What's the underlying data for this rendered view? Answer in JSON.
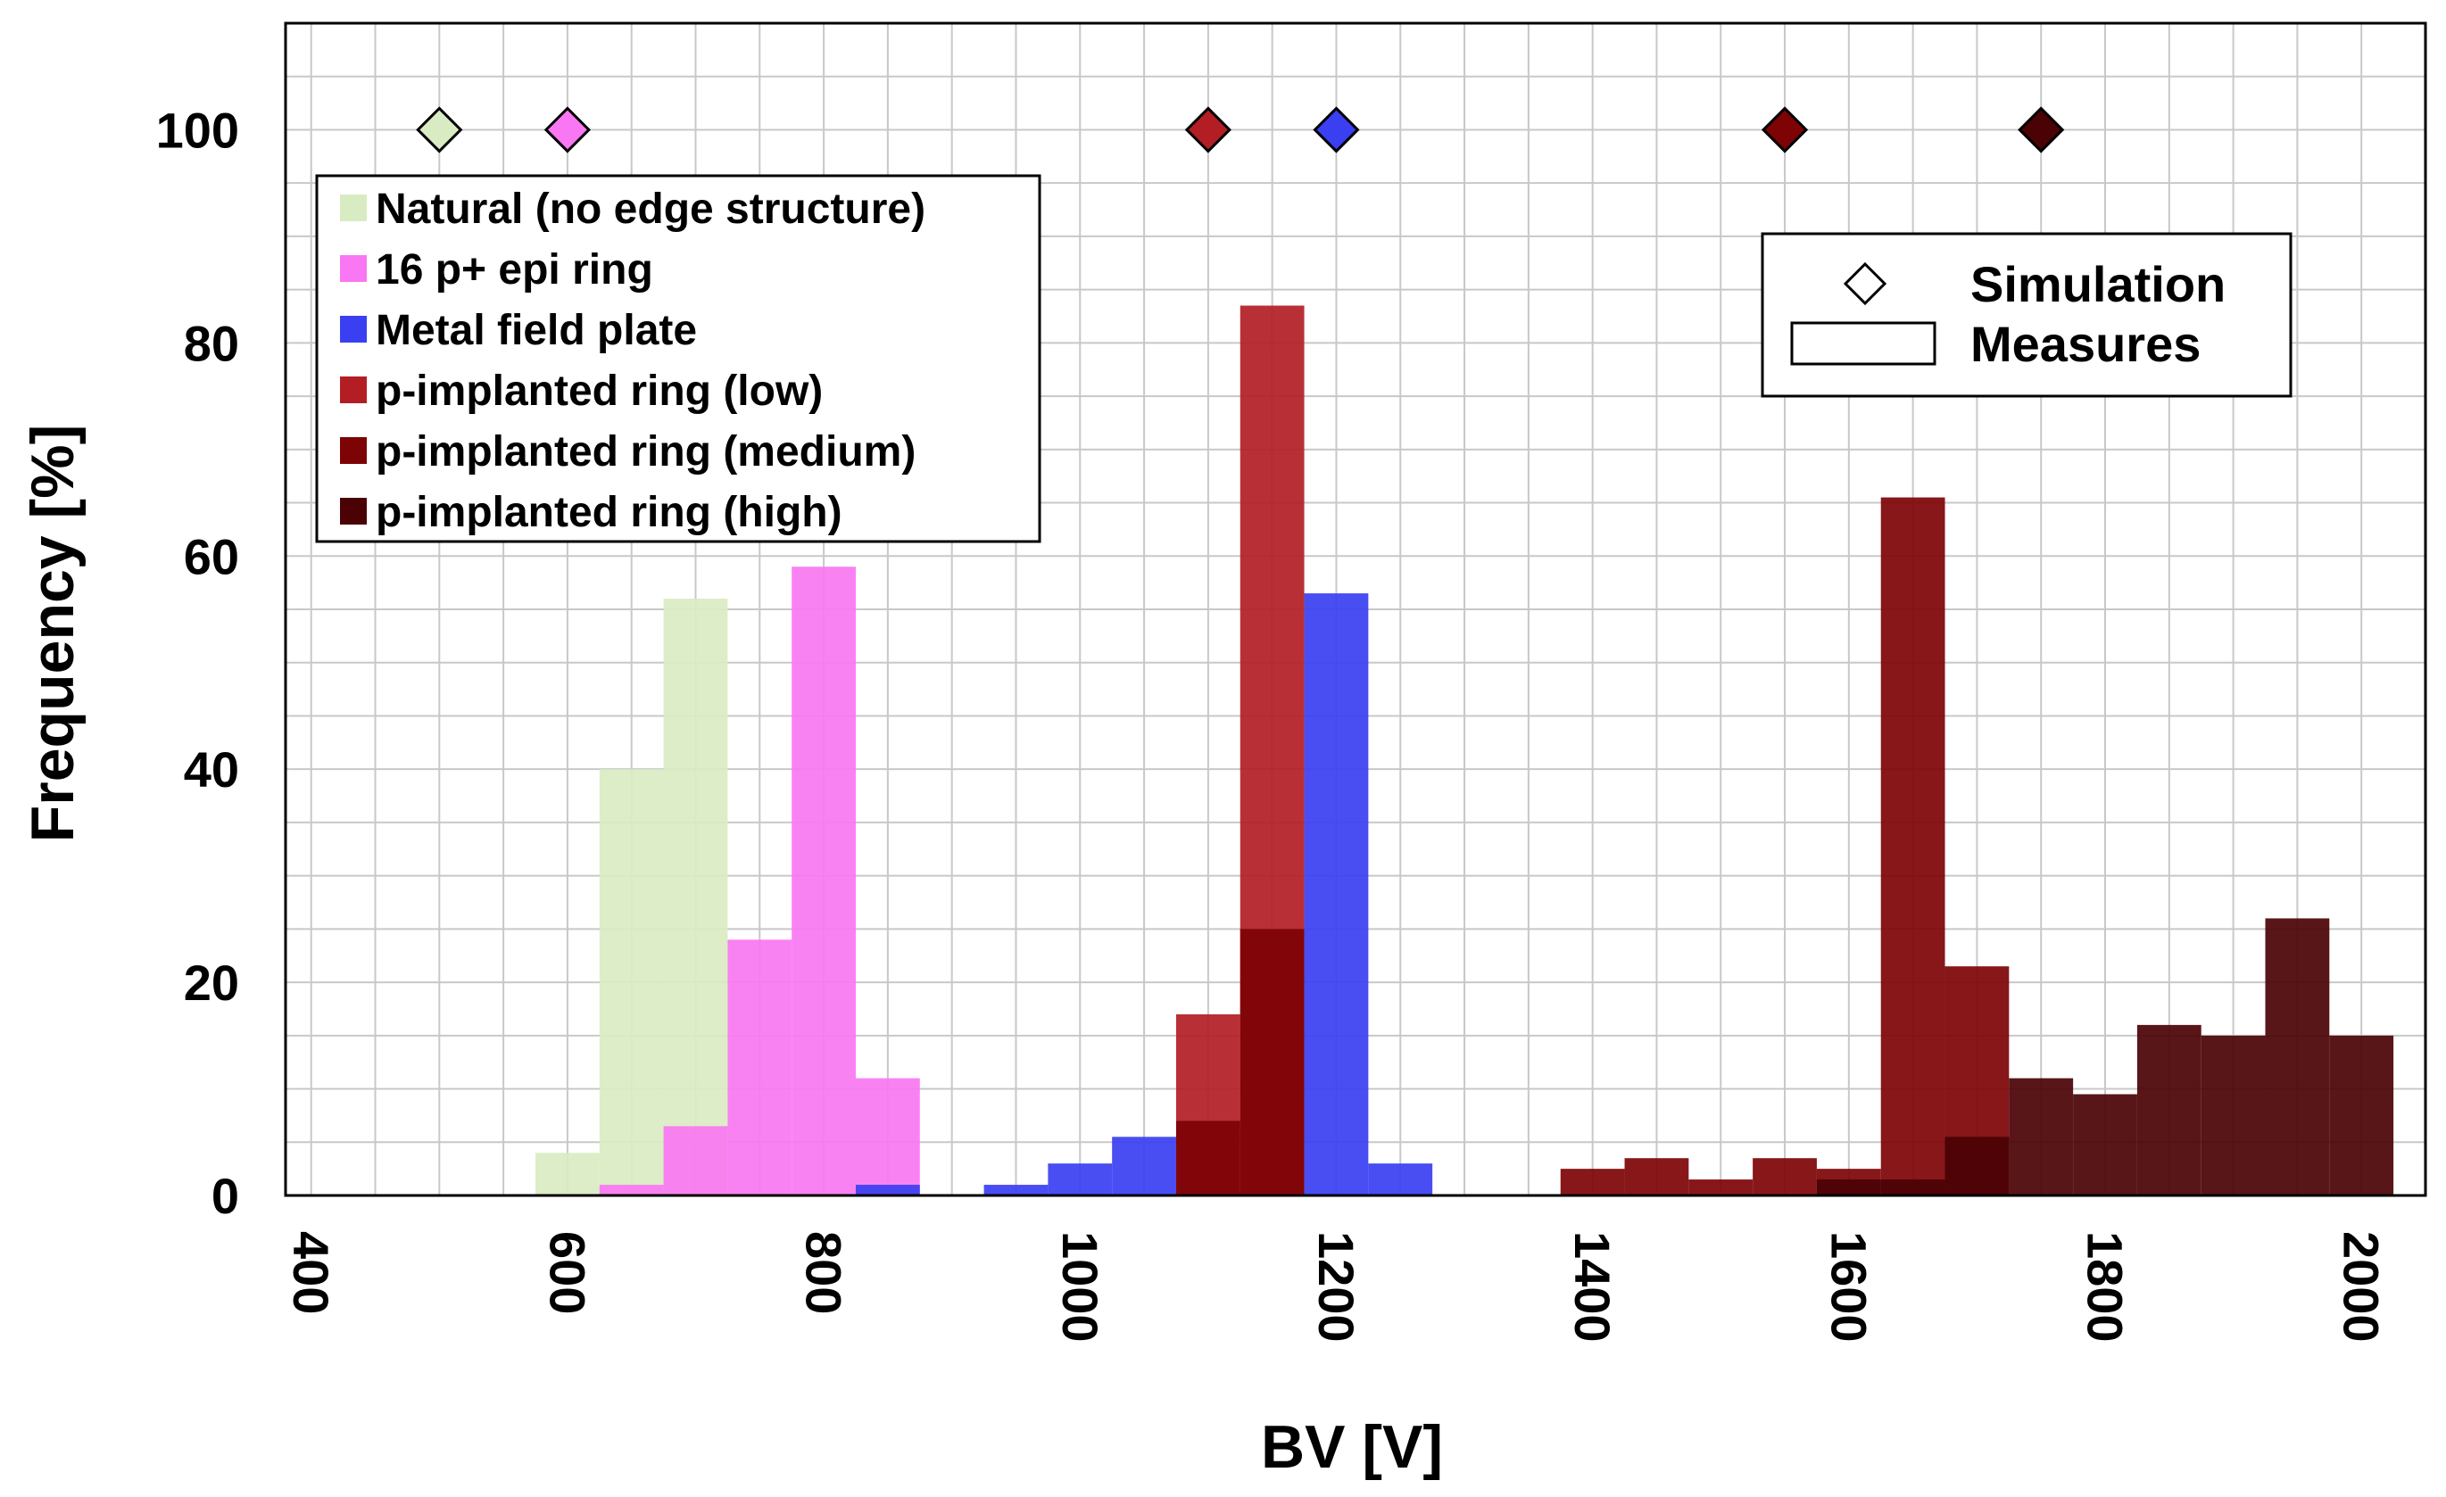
{
  "chart_data": {
    "type": "bar",
    "title": "",
    "xlabel": "BV [V]",
    "ylabel": "Frequency [%]",
    "xlim": [
      380,
      2050
    ],
    "ylim": [
      0,
      110
    ],
    "grid": true,
    "bin_width": 50,
    "x_ticks": [
      "400",
      "600",
      "800",
      "1000",
      "1200",
      "1400",
      "1600",
      "1800",
      "2000"
    ],
    "y_ticks": [
      "0",
      "20",
      "40",
      "60",
      "80",
      "100"
    ],
    "series": [
      {
        "name": "Natural (no edge structure)",
        "color": "#d9ebc2",
        "x": [
          600,
          650,
          700
        ],
        "values": [
          4,
          40,
          56
        ]
      },
      {
        "name": "16 p+ epi ring",
        "color": "#f977f2",
        "x": [
          650,
          700,
          750,
          800,
          850
        ],
        "values": [
          1,
          6.5,
          24,
          59,
          11
        ]
      },
      {
        "name": "Metal field plate",
        "color": "#3a3ff2",
        "x": [
          850,
          950,
          1000,
          1050,
          1200,
          1250
        ],
        "values": [
          1,
          1,
          3,
          5.5,
          56.5,
          3
        ]
      },
      {
        "name": "p-implanted ring (low)",
        "color": "#b21e24",
        "x": [
          1100,
          1150
        ],
        "values": [
          17,
          83.5
        ]
      },
      {
        "name": "p-implanted ring (medium)",
        "color": "#7d0305",
        "x": [
          1100,
          1150,
          1400,
          1450,
          1500,
          1550,
          1600,
          1650,
          1700
        ],
        "values": [
          7,
          25,
          2.5,
          3.5,
          1.5,
          3.5,
          2.5,
          65.5,
          21.5
        ]
      },
      {
        "name": "p-implanted ring (high)",
        "color": "#4a0204",
        "x": [
          1600,
          1650,
          1700,
          1750,
          1800,
          1850,
          1900,
          1950,
          2000
        ],
        "values": [
          1.5,
          1.5,
          5.5,
          11,
          9.5,
          16,
          15,
          26,
          15
        ]
      }
    ],
    "simulation": [
      {
        "series": "Natural (no edge structure)",
        "x": 500,
        "y": 100
      },
      {
        "series": "16 p+ epi ring",
        "x": 600,
        "y": 100
      },
      {
        "series": "p-implanted ring (low)",
        "x": 1100,
        "y": 100
      },
      {
        "series": "Metal field plate",
        "x": 1200,
        "y": 100
      },
      {
        "series": "p-implanted ring (medium)",
        "x": 1550,
        "y": 100
      },
      {
        "series": "p-implanted ring (high)",
        "x": 1750,
        "y": 100
      }
    ],
    "legend_position": "top-left",
    "marker_legend": {
      "simulation_label": "Simulation",
      "measures_label": "Measures",
      "position": "top-right"
    }
  }
}
